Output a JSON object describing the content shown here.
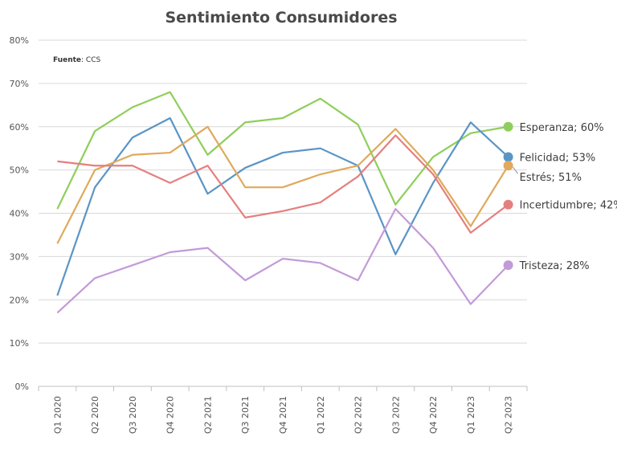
{
  "chart_data": {
    "type": "line",
    "title": "Sentimiento Consumidores",
    "source_label": "Fuente",
    "source_value": ": CCS",
    "xlabel": "",
    "ylabel": "",
    "categories": [
      "Q1 2020",
      "Q2 2020",
      "Q3 2020",
      "Q4 2020",
      "Q2 2021",
      "Q3 2021",
      "Q4 2021",
      "Q1 2022",
      "Q2 2022",
      "Q3 2022",
      "Q4 2022",
      "Q1 2023",
      "Q2 2023"
    ],
    "ylim": [
      0,
      80
    ],
    "y_ticks": [
      0,
      10,
      20,
      30,
      40,
      50,
      60,
      70,
      80
    ],
    "y_tick_labels": [
      "0%",
      "10%",
      "20%",
      "30%",
      "40%",
      "50%",
      "60%",
      "70%",
      "80%"
    ],
    "grid": true,
    "series": [
      {
        "name": "Esperanza",
        "label": "Esperanza; 60%",
        "color": "#8fce5b",
        "values": [
          41,
          59,
          64.5,
          68,
          53.5,
          61,
          62,
          66.5,
          60.5,
          42,
          53,
          58.5,
          60
        ]
      },
      {
        "name": "Felicidad",
        "label": "Felicidad; 53%",
        "color": "#5b95c5",
        "values": [
          21,
          46,
          57.5,
          62,
          44.5,
          50.5,
          54,
          55,
          51,
          30.5,
          47,
          61,
          53
        ]
      },
      {
        "name": "Estrés",
        "label": "Estrés; 51%",
        "color": "#e0a95c",
        "values": [
          33,
          50,
          53.5,
          54,
          60,
          46,
          46,
          49,
          51,
          59.5,
          50,
          37,
          51
        ]
      },
      {
        "name": "Incertidumbre",
        "label": "Incertidumbre; 42%",
        "color": "#e57f7f",
        "values": [
          52,
          51,
          51,
          47,
          51,
          39,
          40.5,
          42.5,
          48.5,
          58,
          49,
          35.5,
          42
        ]
      },
      {
        "name": "Tristeza",
        "label": "Tristeza; 28%",
        "color": "#c39ad8",
        "values": [
          17,
          25,
          28,
          31,
          32,
          24.5,
          29.5,
          28.5,
          24.5,
          41,
          32,
          19,
          28
        ]
      }
    ]
  }
}
